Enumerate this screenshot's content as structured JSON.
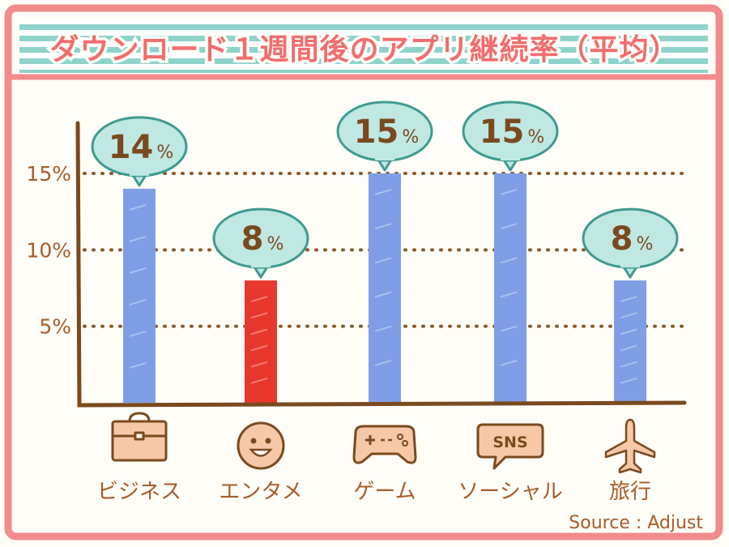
{
  "chart_data": {
    "type": "bar",
    "title": "ダウンロード１週間後のアプリ継続率（平均）",
    "categories": [
      "ビジネス",
      "エンタメ",
      "ゲーム",
      "ソーシャル",
      "旅行"
    ],
    "values": [
      14,
      8,
      15,
      15,
      8
    ],
    "value_labels": [
      "14",
      "8",
      "15",
      "15",
      "8"
    ],
    "value_unit": "%",
    "y_ticks": [
      "5%",
      "10%",
      "15%"
    ],
    "y_tick_values": [
      5,
      10,
      15
    ],
    "ylim": [
      0,
      19
    ],
    "grid": true,
    "source": "Source : Adjust",
    "icons": [
      "briefcase-icon",
      "smiley-icon",
      "gamepad-icon",
      "sns-bubble-icon",
      "airplane-icon"
    ],
    "bar_colors": [
      "#7f9ee6",
      "#e8372d",
      "#7f9ee6",
      "#7f9ee6",
      "#7f9ee6"
    ]
  },
  "colors": {
    "frame": "#f28b8b",
    "stripe": "#7fcfc5",
    "axis": "#7a4a1e",
    "text": "#a75d2a",
    "bubble_fill": "#bfe8e3",
    "bubble_stroke": "#3f9a90",
    "icon_fill": "#f7c8a8"
  }
}
